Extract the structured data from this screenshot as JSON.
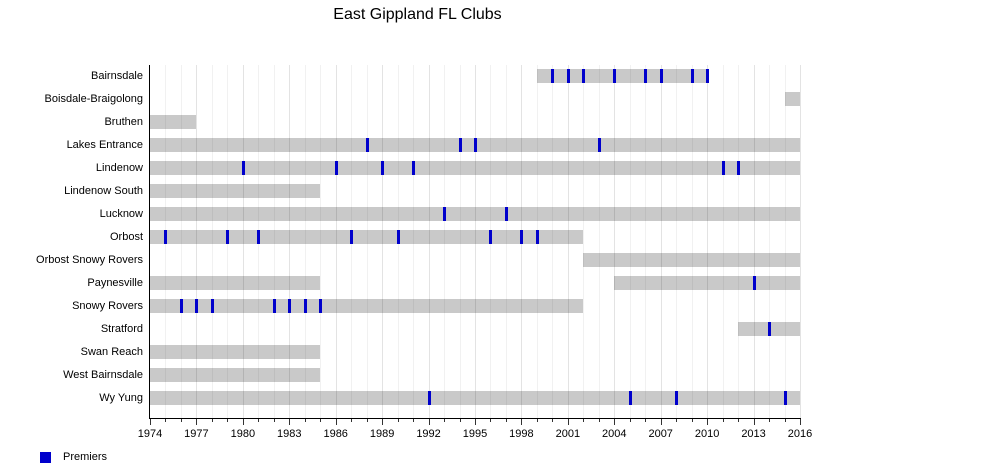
{
  "chart_data": {
    "type": "bar",
    "subtype": "timeline-gantt",
    "title": "East Gippland FL Clubs",
    "xlabel": "",
    "ylabel": "",
    "x_min": 1974,
    "x_max": 2016,
    "x_major_ticks": [
      1974,
      1977,
      1980,
      1983,
      1986,
      1989,
      1992,
      1995,
      1998,
      2001,
      2004,
      2007,
      2010,
      2013,
      2016
    ],
    "x_minor_tick_interval": 1,
    "grid": true,
    "bar_color": "#c9c9c9",
    "premier_mark_color": "#0000cc",
    "legend": {
      "position": "bottom-left",
      "items": [
        {
          "label": "Premiers",
          "color": "#0000cc",
          "marker": "square"
        }
      ]
    },
    "clubs": [
      {
        "name": "Bairnsdale",
        "segments": [
          [
            1999,
            2010
          ]
        ],
        "premierships": [
          2000,
          2001,
          2002,
          2004,
          2006,
          2007,
          2009,
          2010
        ]
      },
      {
        "name": "Boisdale-Braigolong",
        "segments": [
          [
            2015,
            2016
          ]
        ],
        "premierships": []
      },
      {
        "name": "Bruthen",
        "segments": [
          [
            1974,
            1977
          ]
        ],
        "premierships": []
      },
      {
        "name": "Lakes Entrance",
        "segments": [
          [
            1974,
            2016
          ]
        ],
        "premierships": [
          1988,
          1994,
          1995,
          2003
        ]
      },
      {
        "name": "Lindenow",
        "segments": [
          [
            1974,
            2016
          ]
        ],
        "premierships": [
          1980,
          1986,
          1989,
          1991,
          2011,
          2012
        ]
      },
      {
        "name": "Lindenow South",
        "segments": [
          [
            1974,
            1985
          ]
        ],
        "premierships": []
      },
      {
        "name": "Lucknow",
        "segments": [
          [
            1974,
            2016
          ]
        ],
        "premierships": [
          1993,
          1997
        ]
      },
      {
        "name": "Orbost",
        "segments": [
          [
            1974,
            2002
          ]
        ],
        "premierships": [
          1975,
          1979,
          1981,
          1987,
          1990,
          1996,
          1998,
          1999
        ]
      },
      {
        "name": "Orbost Snowy Rovers",
        "segments": [
          [
            2002,
            2016
          ]
        ],
        "premierships": []
      },
      {
        "name": "Paynesville",
        "segments": [
          [
            1974,
            1985
          ],
          [
            2004,
            2016
          ]
        ],
        "premierships": [
          2013
        ]
      },
      {
        "name": "Snowy Rovers",
        "segments": [
          [
            1974,
            2002
          ]
        ],
        "premierships": [
          1976,
          1977,
          1978,
          1982,
          1983,
          1984,
          1985
        ]
      },
      {
        "name": "Stratford",
        "segments": [
          [
            2012,
            2016
          ]
        ],
        "premierships": [
          2014
        ]
      },
      {
        "name": "Swan Reach",
        "segments": [
          [
            1974,
            1985
          ]
        ],
        "premierships": []
      },
      {
        "name": "West Bairnsdale",
        "segments": [
          [
            1974,
            1985
          ]
        ],
        "premierships": []
      },
      {
        "name": "Wy Yung",
        "segments": [
          [
            1974,
            2016
          ]
        ],
        "premierships": [
          1992,
          2005,
          2008,
          2015
        ]
      }
    ]
  }
}
